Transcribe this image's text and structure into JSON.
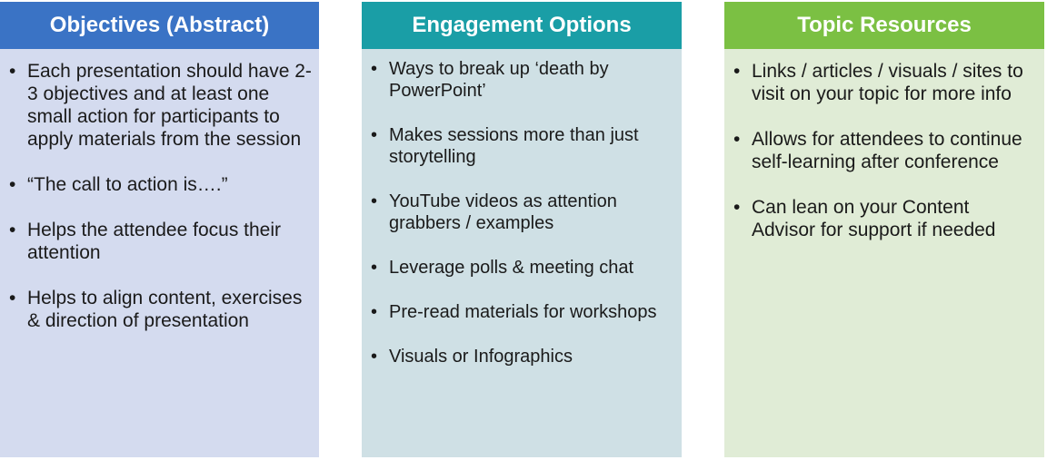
{
  "columns": [
    {
      "title": "Objectives (Abstract)",
      "bullet": "•",
      "items": [
        "Each presentation should have 2-3 objectives and at least one small action for participants to apply materials from the session",
        "“The call to action is….”",
        "Helps the attendee focus their attention",
        "Helps to align content, exercises & direction of presentation"
      ],
      "color": "#3a73c5"
    },
    {
      "title": "Engagement Options",
      "bullet": "•",
      "items": [
        "Ways to break up ‘death by PowerPoint’",
        "Makes sessions more than just storytelling",
        "YouTube videos as attention grabbers / examples",
        "Leverage polls & meeting chat",
        "Pre-read materials for workshops",
        "Visuals or Infographics"
      ],
      "color": "#1a9ea6"
    },
    {
      "title": "Topic Resources",
      "bullet": "•",
      "items": [
        "Links / articles / visuals / sites to visit on your topic for more info",
        "Allows for attendees to continue self-learning after conference",
        "Can lean on your Content Advisor for support if needed"
      ],
      "color": "#7bc043"
    }
  ]
}
